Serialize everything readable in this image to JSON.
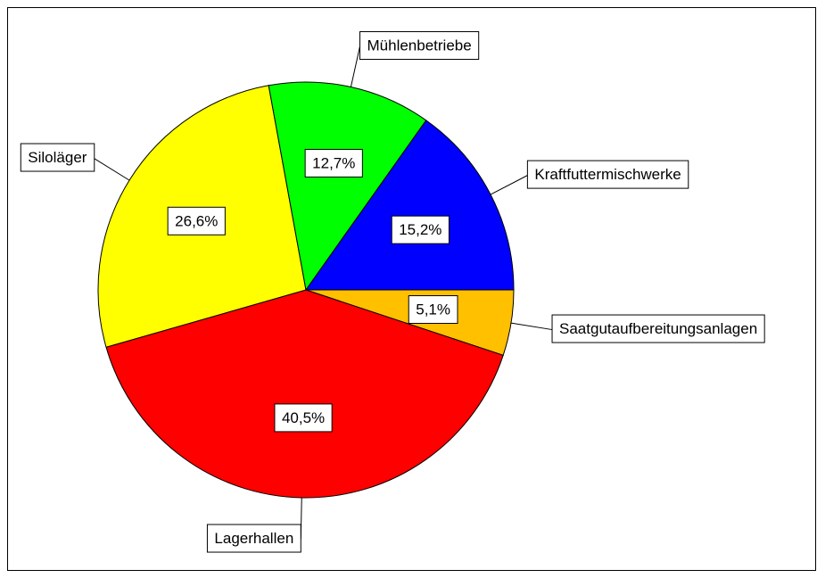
{
  "chart_data": {
    "type": "pie",
    "categories": [
      "Saatgutaufbereitungsanlagen",
      "Lagerhallen",
      "Siloläger",
      "Mühlenbetriebe",
      "Kraftfuttermischwerke"
    ],
    "values": [
      5.1,
      40.5,
      26.6,
      12.7,
      15.2
    ],
    "value_labels": [
      "5,1%",
      "40,5%",
      "26,6%",
      "12,7%",
      "15,2%"
    ],
    "colors": [
      "#ffc000",
      "#ff0000",
      "#ffff00",
      "#00ff00",
      "#0000ff"
    ]
  }
}
